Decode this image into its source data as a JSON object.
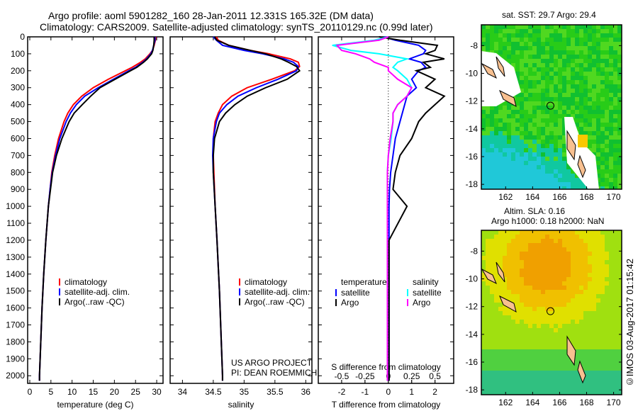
{
  "header": {
    "title_line1": "Argo profile: aoml 5901282_160 28-Jan-2011 12.331S 165.32E (DM data)",
    "title_line2": "Climatology: CARS2009. Satellite-adjusted climatology: synTS_20110129.nc (0.99d later)"
  },
  "side_label": "©IMOS 03-Aug-2017 01:15:42",
  "project_credit": {
    "line1": "US ARGO PROJECT",
    "line2": "PI: DEAN ROEMMICH"
  },
  "colors": {
    "climatology": "#ff0000",
    "satellite": "#0000ff",
    "argo": "#000000",
    "sal_satellite": "#00ffff",
    "sal_argo": "#ff00ff"
  },
  "chart_data": [
    {
      "type": "line",
      "name": "temperature-profile",
      "xlabel": "temperature (deg C)",
      "ylabel": "",
      "xlim": [
        -0.5,
        31.5
      ],
      "ylim": [
        2045,
        0
      ],
      "xticks": [
        0,
        5,
        10,
        15,
        20,
        25,
        30
      ],
      "yticks": [
        0,
        100,
        200,
        300,
        400,
        500,
        600,
        700,
        800,
        900,
        1000,
        1100,
        1200,
        1300,
        1400,
        1500,
        1600,
        1700,
        1800,
        1900,
        2000
      ],
      "legend": [
        "climatology",
        "satellite-adj. clim.",
        "Argo(..raw -QC)"
      ],
      "legend_placement": "lower-center",
      "depth": [
        0,
        20,
        50,
        80,
        100,
        130,
        150,
        180,
        200,
        250,
        300,
        350,
        400,
        450,
        500,
        600,
        700,
        800,
        900,
        1000,
        1200,
        1400,
        1600,
        1800,
        2000,
        2030
      ],
      "series": [
        {
          "name": "climatology",
          "color": "#ff0000",
          "values": [
            29.8,
            29.7,
            29.4,
            29.0,
            28.4,
            27.3,
            26.2,
            24.2,
            22.6,
            18.6,
            15.0,
            12.3,
            10.3,
            9.0,
            8.1,
            6.8,
            5.9,
            5.2,
            4.8,
            4.4,
            3.8,
            3.3,
            2.9,
            2.6,
            2.3,
            2.3
          ]
        },
        {
          "name": "satellite-adj. clim.",
          "color": "#0000ff",
          "values": [
            29.6,
            29.6,
            29.3,
            29.0,
            28.6,
            27.6,
            26.7,
            25.0,
            23.4,
            19.8,
            16.2,
            13.0,
            11.0,
            9.6,
            8.6,
            7.1,
            6.1,
            5.3,
            4.8,
            4.4,
            3.8,
            3.3,
            2.9,
            2.6,
            2.3,
            2.3
          ]
        },
        {
          "name": "Argo(..raw -QC)",
          "color": "#000000",
          "values": [
            29.4,
            29.4,
            29.3,
            29.1,
            28.8,
            27.8,
            26.9,
            25.3,
            23.8,
            20.2,
            16.6,
            14.4,
            12.4,
            10.5,
            9.3,
            7.6,
            6.3,
            5.4,
            4.9,
            4.4,
            3.8,
            3.3,
            2.9,
            2.6,
            2.3,
            2.3
          ]
        }
      ]
    },
    {
      "type": "line",
      "name": "salinity-profile",
      "xlabel": "salinity",
      "xlim": [
        33.8,
        36.1
      ],
      "ylim": [
        2045,
        0
      ],
      "xticks": [
        34,
        34.5,
        35,
        35.5,
        36
      ],
      "legend": [
        "climatology",
        "satellite-adj. clim.",
        "Argo(..raw -QC)"
      ],
      "depth": [
        0,
        20,
        50,
        80,
        100,
        130,
        150,
        175,
        200,
        250,
        300,
        350,
        400,
        450,
        500,
        600,
        700,
        800,
        1000,
        1200,
        1500,
        2000,
        2030
      ],
      "series": [
        {
          "name": "climatology",
          "color": "#ff0000",
          "values": [
            34.55,
            34.58,
            34.75,
            35.1,
            35.4,
            35.75,
            35.88,
            35.9,
            35.82,
            35.45,
            35.05,
            34.8,
            34.65,
            34.58,
            34.53,
            34.5,
            34.5,
            34.51,
            34.53,
            34.56,
            34.6,
            34.65,
            34.65
          ]
        },
        {
          "name": "satellite-adj. clim.",
          "color": "#0000ff",
          "values": [
            34.5,
            34.55,
            34.65,
            35.0,
            35.3,
            35.65,
            35.8,
            35.88,
            35.85,
            35.55,
            35.2,
            34.9,
            34.72,
            34.6,
            34.55,
            34.5,
            34.49,
            34.5,
            34.53,
            34.56,
            34.6,
            34.65,
            34.65
          ]
        },
        {
          "name": "Argo(..raw -QC)",
          "color": "#000000",
          "values": [
            34.52,
            34.56,
            34.75,
            35.1,
            35.35,
            35.6,
            35.72,
            35.85,
            35.9,
            35.7,
            35.35,
            35.05,
            34.85,
            34.7,
            34.6,
            34.52,
            34.5,
            34.5,
            34.53,
            34.56,
            34.6,
            34.65,
            34.65
          ]
        }
      ]
    },
    {
      "type": "line",
      "name": "difference-profile",
      "xlabel": "T difference from climatology",
      "x2label": "S difference from climatology",
      "xlim": [
        -3,
        2.8
      ],
      "x2lim": [
        -0.75,
        0.7
      ],
      "xticks": [
        -2,
        -1,
        0,
        1,
        2
      ],
      "x2ticks": [
        -0.5,
        -0.25,
        0,
        0.25,
        0.5
      ],
      "legend_titles": [
        "temperature",
        "salinity"
      ],
      "legend": [
        "satellite",
        "Argo",
        "satellite",
        "Argo"
      ],
      "depth": [
        0,
        20,
        50,
        80,
        100,
        130,
        150,
        180,
        200,
        250,
        300,
        350,
        400,
        450,
        500,
        600,
        700,
        800,
        900,
        1000,
        1200,
        1500,
        2000,
        2030
      ],
      "series": [
        {
          "name": "T satellite",
          "axis": "T",
          "color": "#0000ff",
          "values": [
            -0.2,
            0.3,
            1.3,
            1.6,
            1.5,
            0.9,
            1.4,
            1.6,
            1.3,
            1.0,
            1.2,
            0.8,
            0.7,
            0.6,
            0.5,
            0.3,
            0.2,
            0.1,
            0.05,
            0.03,
            0.03,
            0.03,
            0.03,
            0.03
          ]
        },
        {
          "name": "T Argo",
          "axis": "T",
          "color": "#000000",
          "values": [
            -0.4,
            0.5,
            2.1,
            2.0,
            1.6,
            2.4,
            1.5,
            1.8,
            1.2,
            2.0,
            1.6,
            2.4,
            2.0,
            1.6,
            1.3,
            1.0,
            0.5,
            0.3,
            0.2,
            0.8,
            0.03,
            0.03,
            0.03,
            0.03
          ]
        },
        {
          "name": "S satellite",
          "axis": "S",
          "color": "#00ffff",
          "values": [
            0,
            -0.15,
            -0.6,
            -0.4,
            -0.1,
            0.2,
            0.1,
            0.05,
            0.1,
            0.2,
            0.25,
            0.2,
            0.1,
            0.05,
            0.05,
            0.03,
            0.0,
            -0.01,
            -0.01,
            -0.01,
            -0.01,
            -0.01,
            -0.01,
            -0.01
          ]
        },
        {
          "name": "S Argo",
          "axis": "S",
          "color": "#ff00ff",
          "values": [
            0,
            -0.1,
            -0.55,
            -0.5,
            -0.35,
            -0.2,
            -0.15,
            0.0,
            0.0,
            0.1,
            0.25,
            0.2,
            0.1,
            0.05,
            0.05,
            0.02,
            0.0,
            -0.01,
            -0.01,
            -0.01,
            -0.01,
            -0.01,
            -0.01,
            -0.01
          ]
        }
      ]
    }
  ],
  "maps": [
    {
      "name": "sst-map",
      "title": "sat. SST: 29.7 Argo: 29.4",
      "lon_ticks": [
        "162",
        "164",
        "166",
        "168",
        "170"
      ],
      "lat_ticks": [
        "-8",
        "-10",
        "-12",
        "-14",
        "-16",
        "-18"
      ],
      "argo_position": {
        "lon": 165.32,
        "lat": -12.331
      }
    },
    {
      "name": "sla-map",
      "title_line1": "Altim. SLA: 0.16",
      "title_line2": "Argo h1000: 0.18 h2000: NaN",
      "lon_ticks": [
        "162",
        "164",
        "166",
        "168",
        "170"
      ],
      "lat_ticks": [
        "-8",
        "-10",
        "-12",
        "-14",
        "-16",
        "-18"
      ],
      "argo_position": {
        "lon": 165.32,
        "lat": -12.331
      }
    }
  ]
}
